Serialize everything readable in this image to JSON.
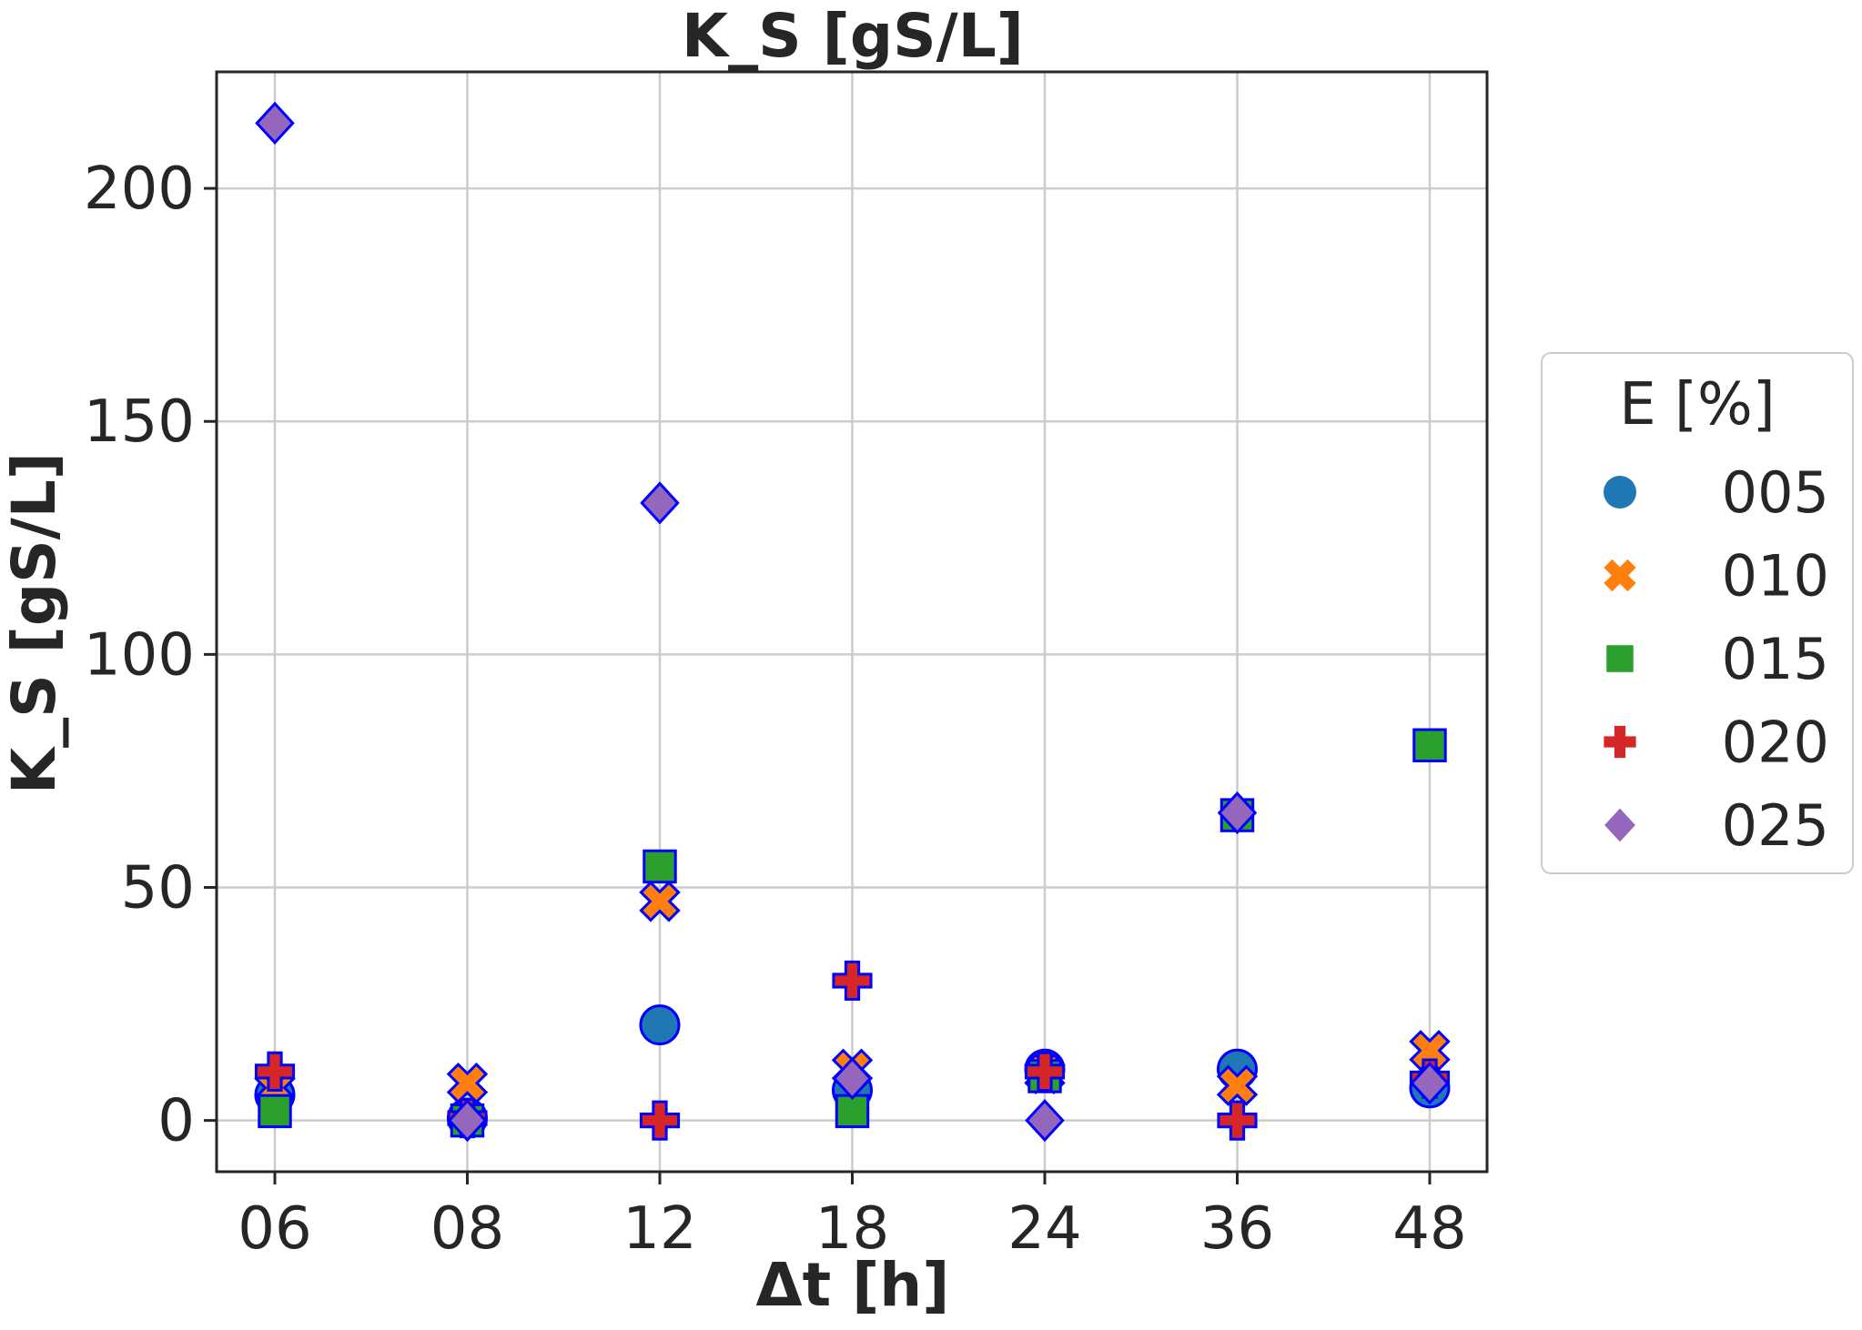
{
  "chart_data": {
    "type": "scatter",
    "title": "K_S [gS/L]",
    "xlabel": "Δt [h]",
    "ylabel": "K_S [gS/L]",
    "categories": [
      "06",
      "08",
      "12",
      "18",
      "24",
      "36",
      "48"
    ],
    "ylim": [
      -11,
      225
    ],
    "yticks": [
      0,
      50,
      100,
      150,
      200
    ],
    "grid": true,
    "legend": {
      "title": "E [%]",
      "placement": "center-right-outside"
    },
    "marker_edge_color": "#0000ff",
    "series": [
      {
        "name": "005",
        "marker": "circle",
        "color": "#1f77b4",
        "values": [
          5.5,
          0.5,
          20.5,
          6.5,
          11,
          11,
          7
        ]
      },
      {
        "name": "010",
        "marker": "x",
        "color": "#ff7f0e",
        "values": [
          7,
          8,
          47,
          11,
          10,
          7.5,
          15
        ]
      },
      {
        "name": "015",
        "marker": "square",
        "color": "#2ca02c",
        "values": [
          2,
          0,
          54.5,
          2,
          9.5,
          65.5,
          80.5
        ]
      },
      {
        "name": "020",
        "marker": "plus",
        "color": "#d62728",
        "values": [
          10.5,
          0.5,
          0,
          30,
          10.5,
          0,
          9
        ]
      },
      {
        "name": "025",
        "marker": "diamond",
        "color": "#9467bd",
        "values": [
          214,
          0,
          132.5,
          9,
          0,
          66,
          8
        ]
      }
    ]
  }
}
